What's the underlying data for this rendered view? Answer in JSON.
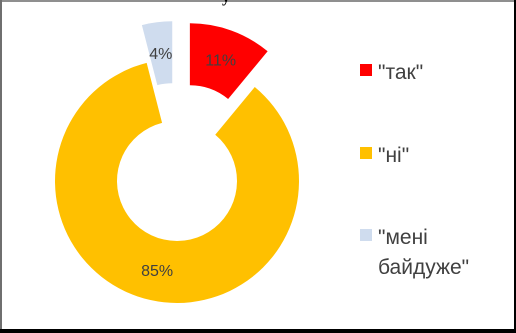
{
  "top_fragment": "у",
  "chart_data": {
    "type": "donut",
    "categories": [
      "\"так\"",
      "\"ні\"",
      "\"мені байдуже\""
    ],
    "values": [
      11,
      85,
      4
    ],
    "labels": [
      "11%",
      "85%",
      "4%"
    ],
    "colors": [
      "#ff0000",
      "#ffc000",
      "#cfdcee"
    ],
    "exploded": [
      true,
      false,
      true
    ],
    "legend_position": "right"
  }
}
